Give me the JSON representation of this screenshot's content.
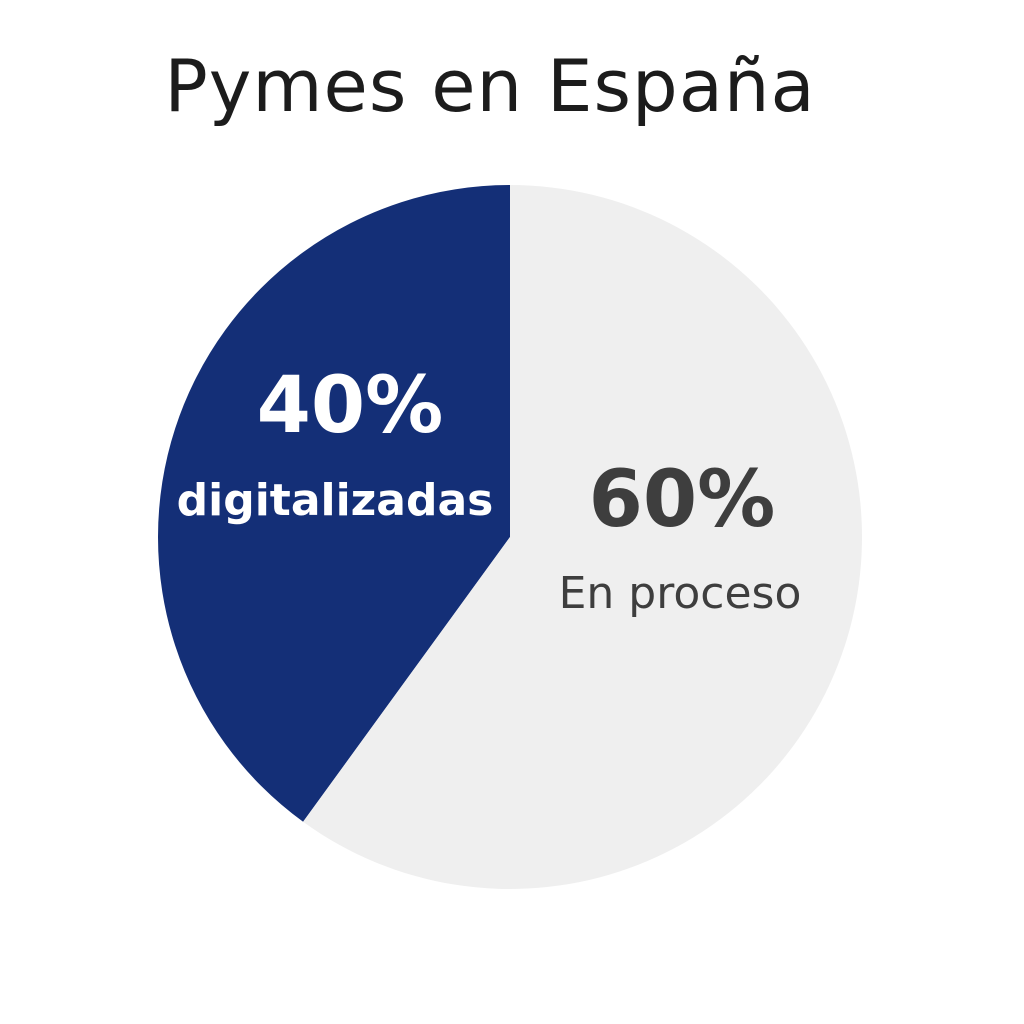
{
  "chart_data": {
    "type": "pie",
    "title": "Pymes en España",
    "slices": [
      {
        "label": "digitalizadas",
        "value_label": "40%",
        "value": 40,
        "color": "#142f77",
        "text_color": "#ffffff"
      },
      {
        "label": "En proceso",
        "value_label": "60%",
        "value": 60,
        "color": "#efefef",
        "text_color": "#3e3e3e"
      }
    ],
    "start_angle_deg": 0,
    "direction": "counterclockwise",
    "legend": "none"
  }
}
